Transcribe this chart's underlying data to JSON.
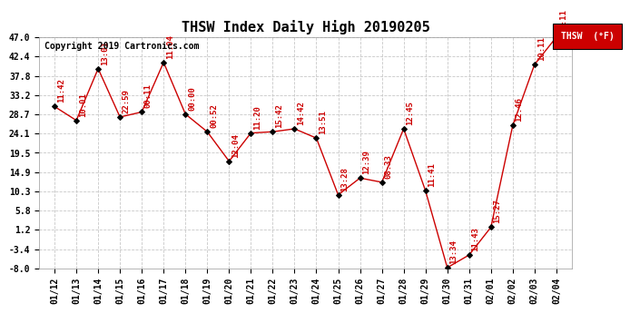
{
  "title": "THSW Index Daily High 20190205",
  "copyright": "Copyright 2019 Cartronics.com",
  "legend_label": "THSW  (°F)",
  "x_labels": [
    "01/12",
    "01/13",
    "01/14",
    "01/15",
    "01/16",
    "01/17",
    "01/18",
    "01/19",
    "01/20",
    "01/21",
    "01/22",
    "01/23",
    "01/24",
    "01/25",
    "01/26",
    "01/27",
    "01/28",
    "01/29",
    "01/30",
    "01/31",
    "02/01",
    "02/02",
    "02/03",
    "02/04"
  ],
  "y_values": [
    30.5,
    27.2,
    39.5,
    28.0,
    29.2,
    41.0,
    28.7,
    24.5,
    17.5,
    24.2,
    24.5,
    25.2,
    23.0,
    9.5,
    13.5,
    12.5,
    25.2,
    10.5,
    -7.8,
    -4.8,
    1.8,
    26.0,
    40.5,
    47.0
  ],
  "time_labels": [
    "11:42",
    "10:01",
    "13:01",
    "22:59",
    "00:11",
    "11:04",
    "00:00",
    "00:52",
    "12:04",
    "11:20",
    "15:42",
    "14:42",
    "13:51",
    "13:28",
    "12:39",
    "08:33",
    "12:45",
    "11:41",
    "13:34",
    "11:43",
    "15:27",
    "12:46",
    "10:11",
    "11:11"
  ],
  "y_ticks": [
    47.0,
    42.4,
    37.8,
    33.2,
    28.7,
    24.1,
    19.5,
    14.9,
    10.3,
    5.8,
    1.2,
    -3.4,
    -8.0
  ],
  "ylim": [
    -8.0,
    47.0
  ],
  "line_color": "#cc0000",
  "marker_color": "#000000",
  "bg_color": "#ffffff",
  "grid_color": "#c8c8c8",
  "title_fontsize": 11,
  "copyright_fontsize": 7,
  "label_fontsize": 6.5,
  "tick_fontsize": 7,
  "legend_bg": "#cc0000",
  "legend_fg": "#ffffff"
}
